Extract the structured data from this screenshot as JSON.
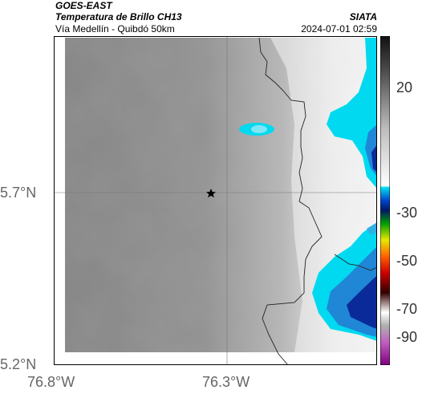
{
  "header": {
    "satellite": "GOES-EAST",
    "product": "Temperatura de Brillo CH13",
    "region": "Vía Medellín - Quibdó 50km",
    "agency": "SIATA",
    "datetime": "2024-07-01 02:59"
  },
  "axes": {
    "x_ticks": [
      "76.8°W",
      "76.3°W"
    ],
    "y_ticks": [
      "5.7°N",
      "5.2°N"
    ]
  },
  "colorbar": {
    "ticks": [
      "20",
      "-30",
      "-50",
      "-70",
      "-90"
    ]
  },
  "colors": {
    "land_gray": "#8a8a8a",
    "cold_cyan": "#00d9f0",
    "deep_blue": "#0a2a9a",
    "border": "#222222"
  }
}
